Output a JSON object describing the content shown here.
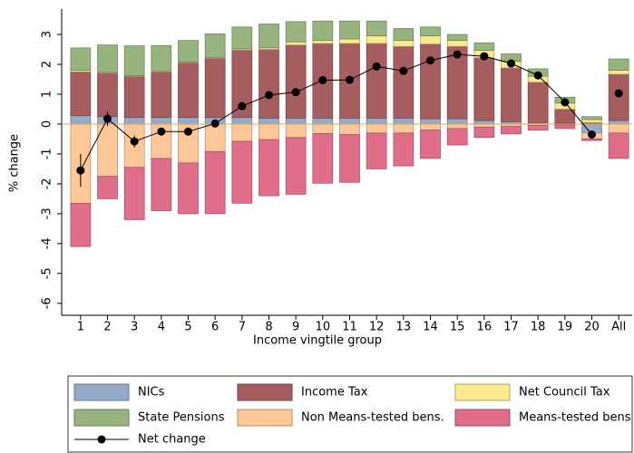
{
  "chart_data": {
    "type": "stacked_bar_line",
    "xlabel": "Income vingtile group",
    "ylabel": "% change",
    "categories": [
      "1",
      "2",
      "3",
      "4",
      "5",
      "6",
      "7",
      "8",
      "9",
      "10",
      "11",
      "12",
      "13",
      "14",
      "15",
      "16",
      "17",
      "18",
      "19",
      "20",
      "All"
    ],
    "ylim": [
      -6.4,
      3.85
    ],
    "yticks": [
      -6,
      -5,
      -4,
      -3,
      -2,
      -1,
      0,
      1,
      2,
      3
    ],
    "series": [
      {
        "name": "NICs",
        "color": "#93abc9",
        "values": [
          0.28,
          0.25,
          0.22,
          0.22,
          0.22,
          0.22,
          0.22,
          0.2,
          0.2,
          0.2,
          0.2,
          0.2,
          0.2,
          0.18,
          0.18,
          0.12,
          0.08,
          0.05,
          0.03,
          -0.3,
          0.12
        ]
      },
      {
        "name": "Income Tax",
        "color": "#a65d5f",
        "values": [
          1.47,
          1.47,
          1.38,
          1.53,
          1.83,
          1.98,
          2.26,
          2.3,
          2.45,
          2.5,
          2.5,
          2.5,
          2.4,
          2.5,
          2.42,
          2.1,
          1.8,
          1.35,
          0.47,
          0.05,
          1.55
        ]
      },
      {
        "name": "Net Council Tax",
        "color": "#fbe98d",
        "values": [
          0.05,
          0.03,
          0.02,
          0.03,
          0.02,
          0.02,
          0.04,
          0.05,
          0.1,
          0.1,
          0.15,
          0.25,
          0.2,
          0.27,
          0.2,
          0.25,
          0.22,
          0.2,
          0.2,
          0.1,
          0.13
        ]
      },
      {
        "name": "State Pensions",
        "color": "#97b37e",
        "values": [
          0.75,
          0.9,
          1.0,
          0.85,
          0.73,
          0.8,
          0.73,
          0.8,
          0.68,
          0.65,
          0.6,
          0.5,
          0.4,
          0.3,
          0.2,
          0.25,
          0.25,
          0.25,
          0.2,
          0.1,
          0.38
        ]
      },
      {
        "name": "Non Means-tested bens.",
        "color": "#fdc797",
        "values": [
          -2.65,
          -1.75,
          -1.45,
          -1.15,
          -1.3,
          -0.92,
          -0.58,
          -0.52,
          -0.45,
          -0.32,
          -0.35,
          -0.3,
          -0.3,
          -0.2,
          -0.15,
          -0.1,
          -0.08,
          -0.05,
          -0.03,
          -0.2,
          -0.3
        ]
      },
      {
        "name": "Means-tested bens",
        "color": "#e06d89",
        "values": [
          -1.45,
          -0.75,
          -1.75,
          -1.75,
          -1.7,
          -2.08,
          -2.07,
          -1.88,
          -1.9,
          -1.66,
          -1.6,
          -1.2,
          -1.1,
          -0.95,
          -0.55,
          -0.35,
          -0.25,
          -0.15,
          -0.12,
          -0.05,
          -0.85
        ]
      }
    ],
    "net": {
      "name": "Net change",
      "color": "#000000",
      "values": [
        -1.55,
        0.18,
        -0.58,
        -0.25,
        -0.25,
        0.02,
        0.6,
        0.97,
        1.07,
        1.47,
        1.48,
        1.93,
        1.78,
        2.13,
        2.33,
        2.27,
        2.03,
        1.63,
        0.73,
        -0.35,
        1.03
      ],
      "errors": [
        0.55,
        0.25,
        0.2,
        0.12,
        0.12,
        0.1,
        0.1,
        0.08,
        0.08,
        0.08,
        0.08,
        0.08,
        0.06,
        0.06,
        0.06,
        0.06,
        0.06,
        0.06,
        0.06,
        0.06,
        0.06
      ]
    }
  }
}
